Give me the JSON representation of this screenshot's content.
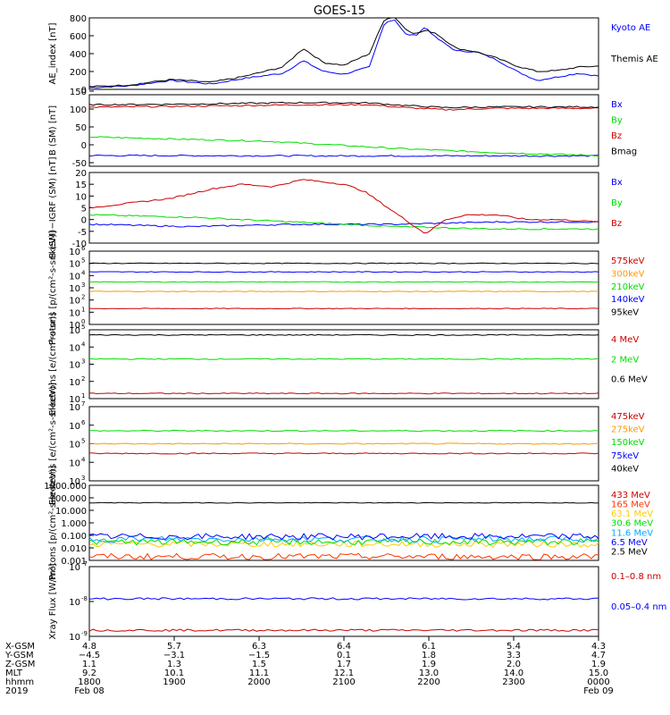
{
  "title": "GOES-15",
  "chart_data": [
    {
      "type": "line",
      "ylabel": "AE_index [nT]",
      "ylim": [
        0,
        800
      ],
      "yticks": [
        "0",
        "200",
        "400",
        "600",
        "800"
      ],
      "series": [
        {
          "name": "Kyoto AE",
          "color": "#0000ff",
          "x": [
            0,
            0.08,
            0.16,
            0.24,
            0.3,
            0.38,
            0.42,
            0.46,
            0.5,
            0.55,
            0.58,
            0.6,
            0.62,
            0.64,
            0.66,
            0.68,
            0.72,
            0.76,
            0.8,
            0.84,
            0.88,
            0.92,
            0.96,
            1.0
          ],
          "y": [
            20,
            40,
            100,
            60,
            120,
            180,
            320,
            200,
            170,
            250,
            750,
            780,
            620,
            600,
            700,
            580,
            430,
            420,
            330,
            200,
            100,
            140,
            180,
            150
          ]
        },
        {
          "name": "Themis AE",
          "color": "#000000",
          "x": [
            0,
            0.08,
            0.16,
            0.24,
            0.3,
            0.38,
            0.42,
            0.46,
            0.5,
            0.55,
            0.58,
            0.6,
            0.62,
            0.64,
            0.66,
            0.68,
            0.72,
            0.76,
            0.8,
            0.84,
            0.88,
            0.92,
            0.96,
            1.0
          ],
          "y": [
            30,
            50,
            110,
            80,
            140,
            250,
            460,
            300,
            270,
            400,
            790,
            810,
            680,
            620,
            660,
            630,
            460,
            420,
            350,
            260,
            200,
            210,
            250,
            260
          ]
        }
      ]
    },
    {
      "type": "line",
      "ylabel": "B (SM) [nT]",
      "ylim": [
        -60,
        140
      ],
      "yticks": [
        "-50",
        "0",
        "50",
        "100",
        "150"
      ],
      "series": [
        {
          "name": "Bx",
          "color": "#0000ff",
          "x": [
            0,
            0.5,
            1.0
          ],
          "y": [
            -30,
            -31,
            -31
          ]
        },
        {
          "name": "By",
          "color": "#00dd00",
          "x": [
            0,
            0.35,
            0.6,
            0.8,
            1.0
          ],
          "y": [
            22,
            10,
            -10,
            -22,
            -30
          ]
        },
        {
          "name": "Bz",
          "color": "#cc0000",
          "x": [
            0,
            0.2,
            0.42,
            0.55,
            0.62,
            0.7,
            0.8,
            1.0
          ],
          "y": [
            105,
            108,
            112,
            112,
            104,
            98,
            102,
            102
          ]
        },
        {
          "name": "Bmag",
          "color": "#000000",
          "x": [
            0,
            0.2,
            0.42,
            0.55,
            0.62,
            0.7,
            0.8,
            1.0
          ],
          "y": [
            112,
            114,
            118,
            117,
            110,
            104,
            106,
            106
          ]
        }
      ]
    },
    {
      "type": "line",
      "ylabel": "B (SM)−IGRF (SM) [nT]",
      "ylim": [
        -10,
        20
      ],
      "yticks": [
        "-10",
        "-5",
        "0",
        "5",
        "10",
        "15",
        "20"
      ],
      "series": [
        {
          "name": "Bx",
          "color": "#0000ff",
          "x": [
            0,
            0.2,
            0.4,
            0.6,
            0.8,
            1.0
          ],
          "y": [
            -2,
            -3,
            -2,
            -2,
            -1,
            -1
          ]
        },
        {
          "name": "By",
          "color": "#00dd00",
          "x": [
            0,
            0.2,
            0.4,
            0.6,
            0.8,
            1.0
          ],
          "y": [
            2,
            1,
            -1,
            -3,
            -4,
            -4
          ]
        },
        {
          "name": "Bz",
          "color": "#cc0000",
          "x": [
            0,
            0.08,
            0.16,
            0.24,
            0.3,
            0.36,
            0.42,
            0.5,
            0.54,
            0.58,
            0.62,
            0.66,
            0.7,
            0.74,
            0.8,
            0.86,
            0.92,
            1.0
          ],
          "y": [
            5,
            7,
            9,
            13,
            15,
            14,
            17,
            15,
            12,
            6,
            0,
            -6,
            0,
            2,
            2,
            0,
            0,
            -1
          ]
        }
      ]
    },
    {
      "type": "line",
      "ylabel": "Protons [p/(cm²-s-sr-keV)]",
      "yscale": "log",
      "ylim": [
        1,
        1000000
      ],
      "series": [
        {
          "name": "575keV",
          "color": "#cc0000",
          "y": 20
        },
        {
          "name": "300keV",
          "color": "#ff9900",
          "y": 500
        },
        {
          "name": "210keV",
          "color": "#00dd00",
          "y": 3000
        },
        {
          "name": "140keV",
          "color": "#0000ff",
          "y": 20000
        },
        {
          "name": "95keV",
          "color": "#000000",
          "y": 100000
        }
      ]
    },
    {
      "type": "line",
      "ylabel": "Electrons [e/(cm²-s-sr)]",
      "yscale": "log",
      "ylim": [
        10,
        100000
      ],
      "series": [
        {
          "name": "4 MeV",
          "color": "#cc0000",
          "y": 20
        },
        {
          "name": "2 MeV",
          "color": "#00dd00",
          "y": 2000
        },
        {
          "name": "0.6 MeV",
          "color": "#000000",
          "y": 50000
        }
      ]
    },
    {
      "type": "line",
      "ylabel": "Electrons [e/(cm²-s-sr-keV)]",
      "yscale": "log",
      "ylim": [
        1000,
        10000000
      ],
      "series": [
        {
          "name": "475keV",
          "color": "#cc0000",
          "y": 30000
        },
        {
          "name": "275keV",
          "color": "#ff9900",
          "y": 100000
        },
        {
          "name": "150keV",
          "color": "#00dd00",
          "y": 500000
        },
        {
          "name": "75keV",
          "color": "#0000ff",
          "y": null
        },
        {
          "name": "40keV",
          "color": "#000000",
          "y": null
        }
      ]
    },
    {
      "type": "line",
      "ylabel": "Protons [p/(cm²-s-sr-keV)]",
      "yscale": "log",
      "ylim": [
        0.001,
        1000
      ],
      "yticks": [
        "0.001",
        "0.010",
        "0.100",
        "1.000",
        "10.000",
        "100.000",
        "1000.000"
      ],
      "series": [
        {
          "name": "433 MeV",
          "color": "#cc0000",
          "y": null
        },
        {
          "name": "165 MeV",
          "color": "#ff3300",
          "y": 0.002
        },
        {
          "name": "63.1 MeV",
          "color": "#ffcc00",
          "y": 0.02
        },
        {
          "name": "30.6 MeV",
          "color": "#00dd00",
          "y": 0.03
        },
        {
          "name": "11.6 MeV",
          "color": "#00aaff",
          "y": 0.05
        },
        {
          "name": "6.5 MeV",
          "color": "#0000ff",
          "y": 0.08
        },
        {
          "name": "2.5 MeV",
          "color": "#000000",
          "y": 40
        }
      ]
    },
    {
      "type": "line",
      "ylabel": "Xray Flux [W/m²]",
      "yscale": "log",
      "ylim": [
        1e-09,
        1e-07
      ],
      "series": [
        {
          "name": "0.1–0.8 nm",
          "color": "#cc0000",
          "y": 1.5e-09
        },
        {
          "name": "0.05–0.4 nm",
          "color": "#0000ff",
          "y": 1.2e-08
        }
      ]
    }
  ],
  "x_axis": {
    "row_labels": [
      "X-GSM",
      "Y-GSM",
      "Z-GSM",
      "MLT",
      "hhmm",
      "2019"
    ],
    "columns": [
      {
        "values": [
          "4.8",
          "−4.5",
          "1.1",
          "9.2",
          "1800",
          "Feb 08"
        ]
      },
      {
        "values": [
          "5.7",
          "−3.1",
          "1.3",
          "10.1",
          "1900",
          ""
        ]
      },
      {
        "values": [
          "6.3",
          "−1.5",
          "1.5",
          "11.1",
          "2000",
          ""
        ]
      },
      {
        "values": [
          "6.4",
          "0.1",
          "1.7",
          "12.1",
          "2100",
          ""
        ]
      },
      {
        "values": [
          "6.1",
          "1.8",
          "1.9",
          "13.0",
          "2200",
          ""
        ]
      },
      {
        "values": [
          "5.4",
          "3.3",
          "2.0",
          "14.0",
          "2300",
          ""
        ]
      },
      {
        "values": [
          "4.3",
          "4.7",
          "1.9",
          "15.0",
          "0000",
          "Feb 09"
        ]
      }
    ]
  }
}
